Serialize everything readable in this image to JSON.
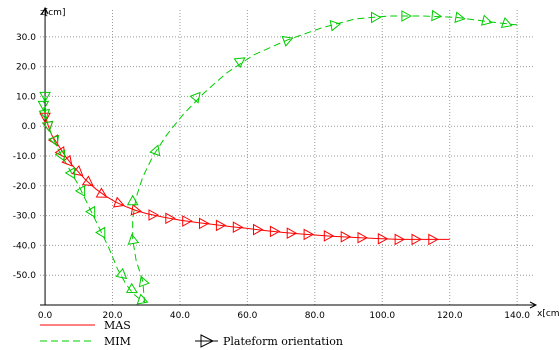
{
  "chart_data": {
    "type": "line",
    "xlabel": "x[cm]",
    "ylabel": "z[cm]",
    "xlim": [
      -1.5,
      145
    ],
    "ylim": [
      -60,
      39
    ],
    "x_ticks": [
      0,
      20,
      40,
      60,
      80,
      100,
      120,
      140
    ],
    "x_tick_labels": [
      "0.0",
      "20.0",
      "40.0",
      "60.0",
      "80.0",
      "100.0",
      "120.0",
      "140.0"
    ],
    "y_ticks": [
      30,
      20,
      10,
      0,
      -10,
      -20,
      -30,
      -40,
      -50
    ],
    "y_tick_labels": [
      "30.0",
      "20.0",
      "10.0",
      "0.0",
      "-10.0",
      "-20.0",
      "-30.0",
      "-40.0",
      "-50.0"
    ],
    "grid": true,
    "legend_position": "bottom-left",
    "legend_extra": "Plateform orientation",
    "series": [
      {
        "name": "MAS",
        "color": "#ff0000",
        "style": "solid",
        "x": [
          0,
          1,
          2,
          4,
          6,
          8,
          10,
          12,
          15,
          18,
          21,
          24,
          27,
          30,
          35,
          40,
          45,
          50,
          55,
          60,
          65,
          70,
          75,
          80,
          85,
          90,
          95,
          100,
          105,
          110,
          115,
          120
        ],
        "y": [
          3,
          0,
          -3,
          -6.5,
          -10,
          -13,
          -15.5,
          -18,
          -21,
          -23.5,
          -25.5,
          -27,
          -28.3,
          -29.3,
          -30.5,
          -31.5,
          -32.3,
          -33,
          -33.7,
          -34.3,
          -35,
          -35.6,
          -36.1,
          -36.5,
          -36.9,
          -37.2,
          -37.5,
          -37.8,
          -38,
          -38,
          -38,
          -38
        ]
      },
      {
        "name": "MIM",
        "color": "#00cc00",
        "style": "dashed",
        "x": [
          0,
          -0.5,
          0,
          1,
          2,
          4,
          7,
          10,
          13,
          16,
          19,
          21.5,
          24,
          26,
          28,
          29.5,
          29,
          27,
          26,
          26,
          27,
          29,
          32,
          36,
          41,
          47,
          54,
          62,
          72,
          82,
          92,
          102,
          112,
          122,
          132,
          140
        ],
        "y": [
          10,
          7,
          4,
          0,
          -3,
          -8,
          -14,
          -20,
          -27,
          -34,
          -41,
          -48,
          -53,
          -56,
          -58,
          -59,
          -52,
          -45,
          -38,
          -31,
          -24,
          -17,
          -10,
          -3,
          4,
          11,
          18,
          24,
          29,
          33,
          36,
          37,
          37,
          36.5,
          35,
          34
        ]
      }
    ],
    "orientation_markers": [
      {
        "series": "MAS",
        "x": 0,
        "y": 3,
        "angle": 90
      },
      {
        "series": "MAS",
        "x": 1,
        "y": 0,
        "angle": 80
      },
      {
        "series": "MAS",
        "x": 3,
        "y": -5,
        "angle": 60
      },
      {
        "series": "MAS",
        "x": 5,
        "y": -9,
        "angle": 55
      },
      {
        "series": "MAS",
        "x": 7,
        "y": -12,
        "angle": 50
      },
      {
        "series": "MAS",
        "x": 10,
        "y": -15.5,
        "angle": 40
      },
      {
        "series": "MAS",
        "x": 13,
        "y": -19,
        "angle": 35
      },
      {
        "series": "MAS",
        "x": 17,
        "y": -23,
        "angle": 30
      },
      {
        "series": "MAS",
        "x": 22,
        "y": -26,
        "angle": 20
      },
      {
        "series": "MAS",
        "x": 27,
        "y": -28.3,
        "angle": 10
      },
      {
        "series": "MAS",
        "x": 32,
        "y": -29.8,
        "angle": 0
      },
      {
        "series": "MAS",
        "x": 37,
        "y": -30.9,
        "angle": 0
      },
      {
        "series": "MAS",
        "x": 42,
        "y": -31.8,
        "angle": 0
      },
      {
        "series": "MAS",
        "x": 47,
        "y": -32.6,
        "angle": 0
      },
      {
        "series": "MAS",
        "x": 52,
        "y": -33.3,
        "angle": 0
      },
      {
        "series": "MAS",
        "x": 57,
        "y": -33.9,
        "angle": 0
      },
      {
        "series": "MAS",
        "x": 63,
        "y": -34.7,
        "angle": 0
      },
      {
        "series": "MAS",
        "x": 68,
        "y": -35.3,
        "angle": 0
      },
      {
        "series": "MAS",
        "x": 73,
        "y": -35.9,
        "angle": 0
      },
      {
        "series": "MAS",
        "x": 78,
        "y": -36.3,
        "angle": 0
      },
      {
        "series": "MAS",
        "x": 84,
        "y": -36.8,
        "angle": 0
      },
      {
        "series": "MAS",
        "x": 89,
        "y": -37.1,
        "angle": 0
      },
      {
        "series": "MAS",
        "x": 94,
        "y": -37.4,
        "angle": 0
      },
      {
        "series": "MAS",
        "x": 100,
        "y": -37.8,
        "angle": 0
      },
      {
        "series": "MAS",
        "x": 105,
        "y": -38,
        "angle": 0
      },
      {
        "series": "MAS",
        "x": 110,
        "y": -38,
        "angle": 0
      },
      {
        "series": "MAS",
        "x": 115,
        "y": -38,
        "angle": 0
      },
      {
        "series": "MIM",
        "x": 0,
        "y": 10,
        "angle": 90
      },
      {
        "series": "MIM",
        "x": -0.5,
        "y": 7,
        "angle": 90
      },
      {
        "series": "MIM",
        "x": 0,
        "y": 4,
        "angle": 80
      },
      {
        "series": "MIM",
        "x": 1,
        "y": 0,
        "angle": 80
      },
      {
        "series": "MIM",
        "x": 3,
        "y": -5,
        "angle": 70
      },
      {
        "series": "MIM",
        "x": 5,
        "y": -10,
        "angle": 65
      },
      {
        "series": "MIM",
        "x": 8,
        "y": -16,
        "angle": 60
      },
      {
        "series": "MIM",
        "x": 11,
        "y": -22,
        "angle": 60
      },
      {
        "series": "MIM",
        "x": 14,
        "y": -29,
        "angle": 60
      },
      {
        "series": "MIM",
        "x": 17,
        "y": -36,
        "angle": 60
      },
      {
        "series": "MIM",
        "x": 23,
        "y": -50,
        "angle": 40
      },
      {
        "series": "MIM",
        "x": 26,
        "y": -55,
        "angle": 30
      },
      {
        "series": "MIM",
        "x": 29,
        "y": -58.5,
        "angle": 20
      },
      {
        "series": "MIM",
        "x": 29,
        "y": -52,
        "angle": 250
      },
      {
        "series": "MIM",
        "x": 26,
        "y": -38,
        "angle": 260
      },
      {
        "series": "MIM",
        "x": 26,
        "y": -25,
        "angle": 270
      },
      {
        "series": "MIM",
        "x": 33,
        "y": -8,
        "angle": 290
      },
      {
        "series": "MIM",
        "x": 45,
        "y": 10,
        "angle": 310
      },
      {
        "series": "MIM",
        "x": 58,
        "y": 22,
        "angle": 325
      },
      {
        "series": "MIM",
        "x": 72,
        "y": 29,
        "angle": 340
      },
      {
        "series": "MIM",
        "x": 86,
        "y": 34,
        "angle": 350
      },
      {
        "series": "MIM",
        "x": 98,
        "y": 36.5,
        "angle": 0
      },
      {
        "series": "MIM",
        "x": 107,
        "y": 37,
        "angle": 0
      },
      {
        "series": "MIM",
        "x": 116,
        "y": 37,
        "angle": 5
      },
      {
        "series": "MIM",
        "x": 123,
        "y": 36.3,
        "angle": 10
      },
      {
        "series": "MIM",
        "x": 131,
        "y": 35.2,
        "angle": 15
      },
      {
        "series": "MIM",
        "x": 137,
        "y": 34.3,
        "angle": 20
      }
    ]
  }
}
